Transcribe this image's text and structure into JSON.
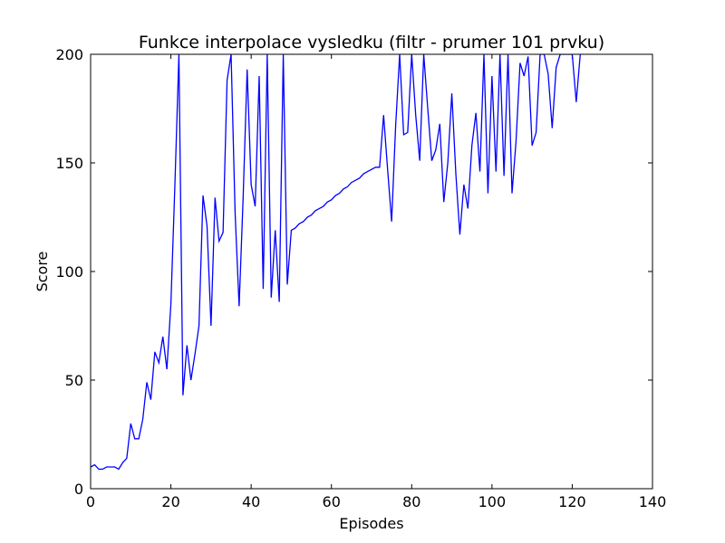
{
  "chart_data": {
    "type": "line",
    "title": "Funkce interpolace vysledku  (filtr - prumer 101 prvku)",
    "xlabel": "Episodes",
    "ylabel": "Score",
    "xlim": [
      0,
      140
    ],
    "ylim": [
      0,
      200
    ],
    "xticks": [
      "0",
      "20",
      "40",
      "60",
      "80",
      "100",
      "120",
      "140"
    ],
    "yticks": [
      "0",
      "50",
      "100",
      "150",
      "200"
    ],
    "grid": false,
    "series": [
      {
        "color": "#0000ff",
        "x": [
          0,
          1,
          2,
          3,
          4,
          5,
          6,
          7,
          8,
          9,
          10,
          11,
          12,
          13,
          14,
          15,
          16,
          17,
          18,
          19,
          20,
          21,
          22,
          23,
          24,
          25,
          26,
          27,
          28,
          29,
          30,
          31,
          32,
          33,
          34,
          35,
          36,
          37,
          38,
          39,
          40,
          41,
          42,
          43,
          44,
          45,
          46,
          47,
          48,
          49,
          50,
          51,
          52,
          53,
          54,
          55,
          56,
          57,
          58,
          59,
          60,
          61,
          62,
          63,
          64,
          65,
          66,
          67,
          68,
          69,
          70,
          71,
          72,
          73,
          74,
          75,
          76,
          77,
          78,
          79,
          80,
          81,
          82,
          83,
          84,
          85,
          86,
          87,
          88,
          89,
          90,
          91,
          92,
          93,
          94,
          95,
          96,
          97,
          98,
          99,
          100,
          101,
          102,
          103,
          104,
          105,
          106,
          107,
          108,
          109,
          110,
          111,
          112,
          113,
          114,
          115,
          116,
          117,
          118,
          119,
          120,
          121,
          122
        ],
        "y": [
          10,
          11,
          9,
          9,
          10,
          10,
          10,
          9,
          12,
          14,
          30,
          23,
          23,
          32,
          49,
          41,
          63,
          58,
          70,
          55,
          85,
          140,
          200,
          43,
          66,
          50,
          62,
          75,
          135,
          121,
          75,
          134,
          114,
          118,
          188,
          200,
          127,
          84,
          134,
          193,
          140,
          130,
          190,
          92,
          200,
          88,
          119,
          86,
          200,
          94,
          119,
          120,
          122,
          123,
          125,
          126,
          128,
          129,
          130,
          132,
          133,
          135,
          136,
          138,
          139,
          141,
          142,
          143,
          145,
          146,
          147,
          148,
          148,
          172,
          147,
          123,
          167,
          200,
          163,
          164,
          200,
          172,
          151,
          200,
          175,
          151,
          156,
          168,
          132,
          150,
          182,
          145,
          117,
          140,
          129,
          158,
          173,
          146,
          200,
          136,
          190,
          146,
          200,
          144,
          200,
          136,
          160,
          196,
          190,
          199,
          158,
          164,
          200,
          200,
          191,
          166,
          194,
          200,
          200,
          200,
          200,
          178,
          200
        ]
      }
    ]
  }
}
